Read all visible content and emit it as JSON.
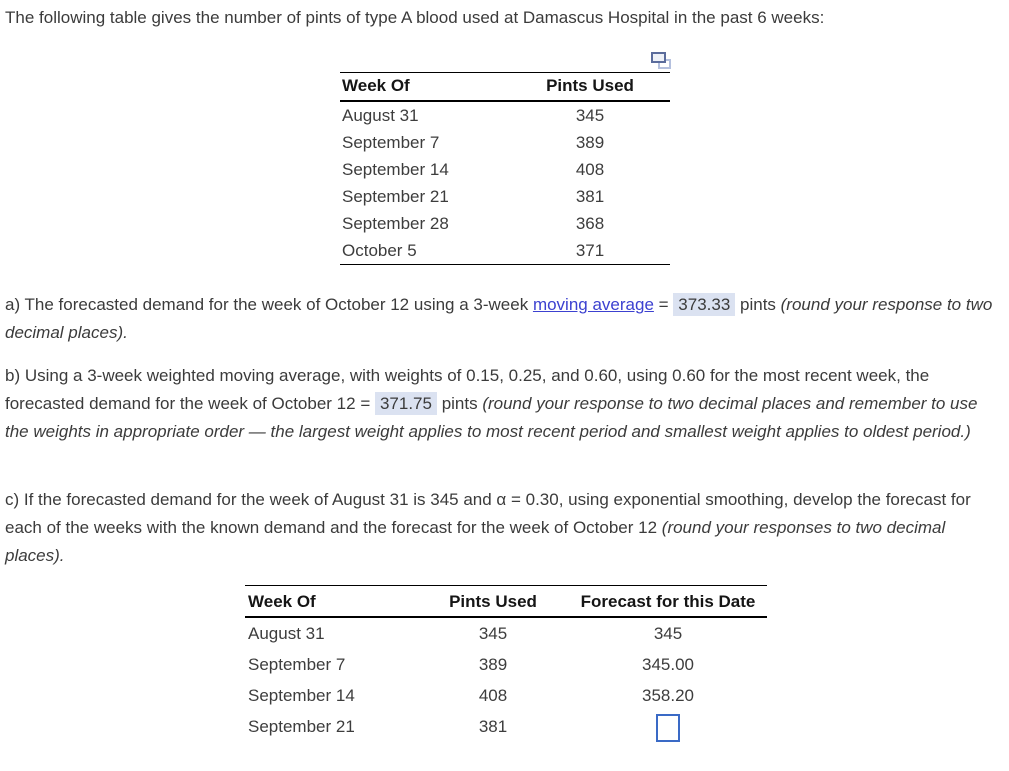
{
  "intro": "The following table gives the number of pints of type A blood used at Damascus Hospital in the past 6 weeks:",
  "table1": {
    "headers": [
      "Week Of",
      "Pints Used"
    ],
    "rows": [
      [
        "August 31",
        "345"
      ],
      [
        "September 7",
        "389"
      ],
      [
        "September 14",
        "408"
      ],
      [
        "September 21",
        "381"
      ],
      [
        "September 28",
        "368"
      ],
      [
        "October 5",
        "371"
      ]
    ]
  },
  "part_a": {
    "prefix": "a) The forecasted demand for the week of October 12 using a 3-week ",
    "link_text": "moving average",
    "equals": " = ",
    "answer": "373.33",
    "after": " pints ",
    "note": "(round your response to two decimal places)."
  },
  "part_b": {
    "prefix": "b) Using a 3-week weighted moving average, with weights of 0.15, 0.25, and 0.60, using 0.60 for the most recent week, the forecasted demand for the week of October 12 = ",
    "answer": "371.75",
    "after": " pints ",
    "note": "(round your response to two decimal places and remember to use the weights in appropriate order — the largest weight applies to most recent period and smallest weight applies to oldest period.)"
  },
  "part_c": {
    "prefix": "c) If the forecasted demand for the week of August 31 is 345 and α = 0.30, using exponential smoothing, develop the forecast for each of the weeks with the known demand and the forecast for the week of October 12 ",
    "note": "(round your responses to two decimal places)."
  },
  "table2": {
    "headers": [
      "Week Of",
      "Pints Used",
      "Forecast for this Date"
    ],
    "rows": [
      {
        "week": "August 31",
        "pints": "345",
        "forecast": "345"
      },
      {
        "week": "September 7",
        "pints": "389",
        "forecast": "345.00"
      },
      {
        "week": "September 14",
        "pints": "408",
        "forecast": "358.20"
      },
      {
        "week": "September 21",
        "pints": "381",
        "forecast": ""
      }
    ],
    "pending_input_value": ""
  },
  "icons": {
    "table_copy": "copy-icon"
  },
  "colors": {
    "answer_highlight": "#dbe2f1",
    "link": "#3c41d0",
    "input_border": "#3a6ac6",
    "copy_icon_front": "#5b6c9c",
    "copy_icon_back": "#b4c0de"
  }
}
